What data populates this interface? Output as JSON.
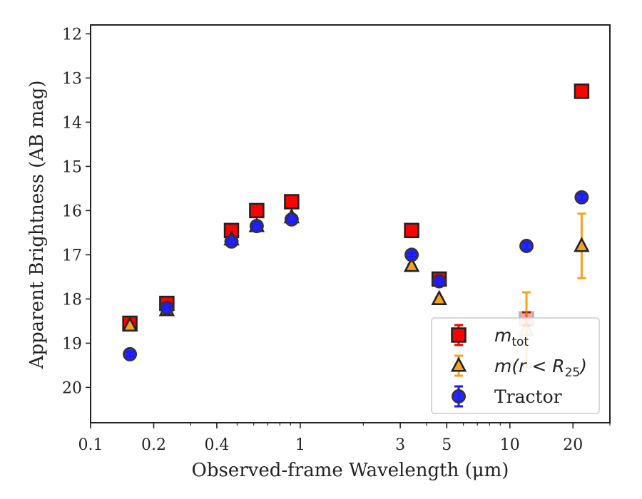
{
  "chart_data": {
    "type": "scatter",
    "xlabel": "Observed-frame Wavelength (μm)",
    "ylabel": "Apparent Brightness (AB mag)",
    "x_scale": "log",
    "xlim": [
      0.1,
      30
    ],
    "ylim": [
      20.8,
      11.8
    ],
    "y_inverted": true,
    "grid": false,
    "legend_position": "lower-right",
    "x_ticks": [
      {
        "value": 0.1,
        "label": "0.1"
      },
      {
        "value": 0.2,
        "label": "0.2"
      },
      {
        "value": 0.4,
        "label": "0.4"
      },
      {
        "value": 1,
        "label": "1"
      },
      {
        "value": 3,
        "label": "3"
      },
      {
        "value": 5,
        "label": "5"
      },
      {
        "value": 10,
        "label": "10"
      },
      {
        "value": 20,
        "label": "20"
      }
    ],
    "y_ticks": [
      12,
      13,
      14,
      15,
      16,
      17,
      18,
      19,
      20
    ],
    "series": [
      {
        "name": "m_tot",
        "legend_label": "m",
        "legend_subscript": "tot",
        "marker": "square",
        "color": "#ff0000",
        "edge_color": "#222222",
        "points": [
          {
            "x": 0.154,
            "y": 18.55,
            "err": 0.1
          },
          {
            "x": 0.231,
            "y": 18.1,
            "err": 0.06
          },
          {
            "x": 0.47,
            "y": 16.45,
            "err": 0.05
          },
          {
            "x": 0.62,
            "y": 16.0,
            "err": 0.05
          },
          {
            "x": 0.91,
            "y": 15.8,
            "err": 0.05
          },
          {
            "x": 3.4,
            "y": 16.45,
            "err": 0.05
          },
          {
            "x": 4.6,
            "y": 17.55,
            "err": 0.08
          },
          {
            "x": 12.0,
            "y": 18.45,
            "err": 0.15
          },
          {
            "x": 22.0,
            "y": 13.3,
            "err": 0.05
          }
        ]
      },
      {
        "name": "m(r < R25)",
        "legend_label": "m(r < R",
        "legend_subscript": "25",
        "legend_suffix": ")",
        "marker": "triangle",
        "color": "#f5a31c",
        "edge_color": "#222222",
        "points": [
          {
            "x": 0.154,
            "y": 18.6,
            "err": 0.05
          },
          {
            "x": 0.231,
            "y": 18.25,
            "err": 0.04
          },
          {
            "x": 0.47,
            "y": 16.65,
            "err": 0.03
          },
          {
            "x": 0.62,
            "y": 16.35,
            "err": 0.03
          },
          {
            "x": 0.91,
            "y": 16.15,
            "err": 0.03
          },
          {
            "x": 3.4,
            "y": 17.25,
            "err": 0.03
          },
          {
            "x": 4.6,
            "y": 18.0,
            "err": 0.04
          },
          {
            "x": 12.0,
            "y": 18.7,
            "err": 0.85
          },
          {
            "x": 22.0,
            "y": 16.8,
            "err": 0.73
          }
        ]
      },
      {
        "name": "Tractor",
        "legend_label": "Tractor",
        "marker": "circle",
        "color": "#1a1aff",
        "edge_color": "#333333",
        "points": [
          {
            "x": 0.154,
            "y": 19.25,
            "err": 0.05
          },
          {
            "x": 0.231,
            "y": 18.2,
            "err": 0.05
          },
          {
            "x": 0.47,
            "y": 16.7,
            "err": 0.04
          },
          {
            "x": 0.62,
            "y": 16.35,
            "err": 0.04
          },
          {
            "x": 0.91,
            "y": 16.2,
            "err": 0.04
          },
          {
            "x": 3.4,
            "y": 17.0,
            "err": 0.05
          },
          {
            "x": 4.6,
            "y": 17.6,
            "err": 0.05
          },
          {
            "x": 12.0,
            "y": 16.8,
            "err": 0.08
          },
          {
            "x": 22.0,
            "y": 15.7,
            "err": 0.07
          }
        ]
      }
    ]
  }
}
